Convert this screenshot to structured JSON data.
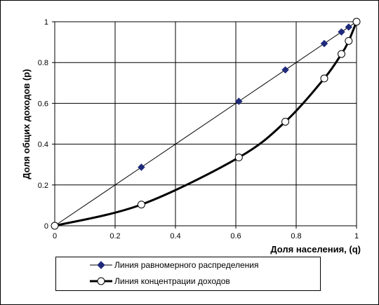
{
  "chart_data": {
    "type": "line",
    "title": "",
    "xlabel": "Доля населения, (q)",
    "ylabel": "Доля общих доходов (р)",
    "xlim": [
      0,
      1
    ],
    "ylim": [
      0,
      1
    ],
    "x_ticks": [
      "0",
      "0.2",
      "0.4",
      "0.6",
      "0.8",
      "1"
    ],
    "y_ticks": [
      "0",
      "0.2",
      "0.4",
      "0.6",
      "0.8",
      "1"
    ],
    "grid": true,
    "legend_position": "bottom",
    "series": [
      {
        "name": "Линия равномерного распределения",
        "color": "#000000",
        "marker": "diamond",
        "marker_color": "#1f2a7a",
        "line_width": 1,
        "points": [
          [
            0,
            0
          ],
          [
            0.287,
            0.287
          ],
          [
            0.61,
            0.61
          ],
          [
            0.764,
            0.764
          ],
          [
            0.893,
            0.893
          ],
          [
            0.95,
            0.95
          ],
          [
            0.974,
            0.974
          ],
          [
            1,
            1
          ]
        ]
      },
      {
        "name": "Линия концентрации доходов",
        "color": "#000000",
        "marker": "circle",
        "marker_color": "#ffffff",
        "line_width": 3,
        "points": [
          [
            0,
            0
          ],
          [
            0.287,
            0.104
          ],
          [
            0.61,
            0.335
          ],
          [
            0.764,
            0.51
          ],
          [
            0.893,
            0.722
          ],
          [
            0.95,
            0.842
          ],
          [
            0.974,
            0.906
          ],
          [
            1,
            1
          ]
        ]
      }
    ]
  }
}
